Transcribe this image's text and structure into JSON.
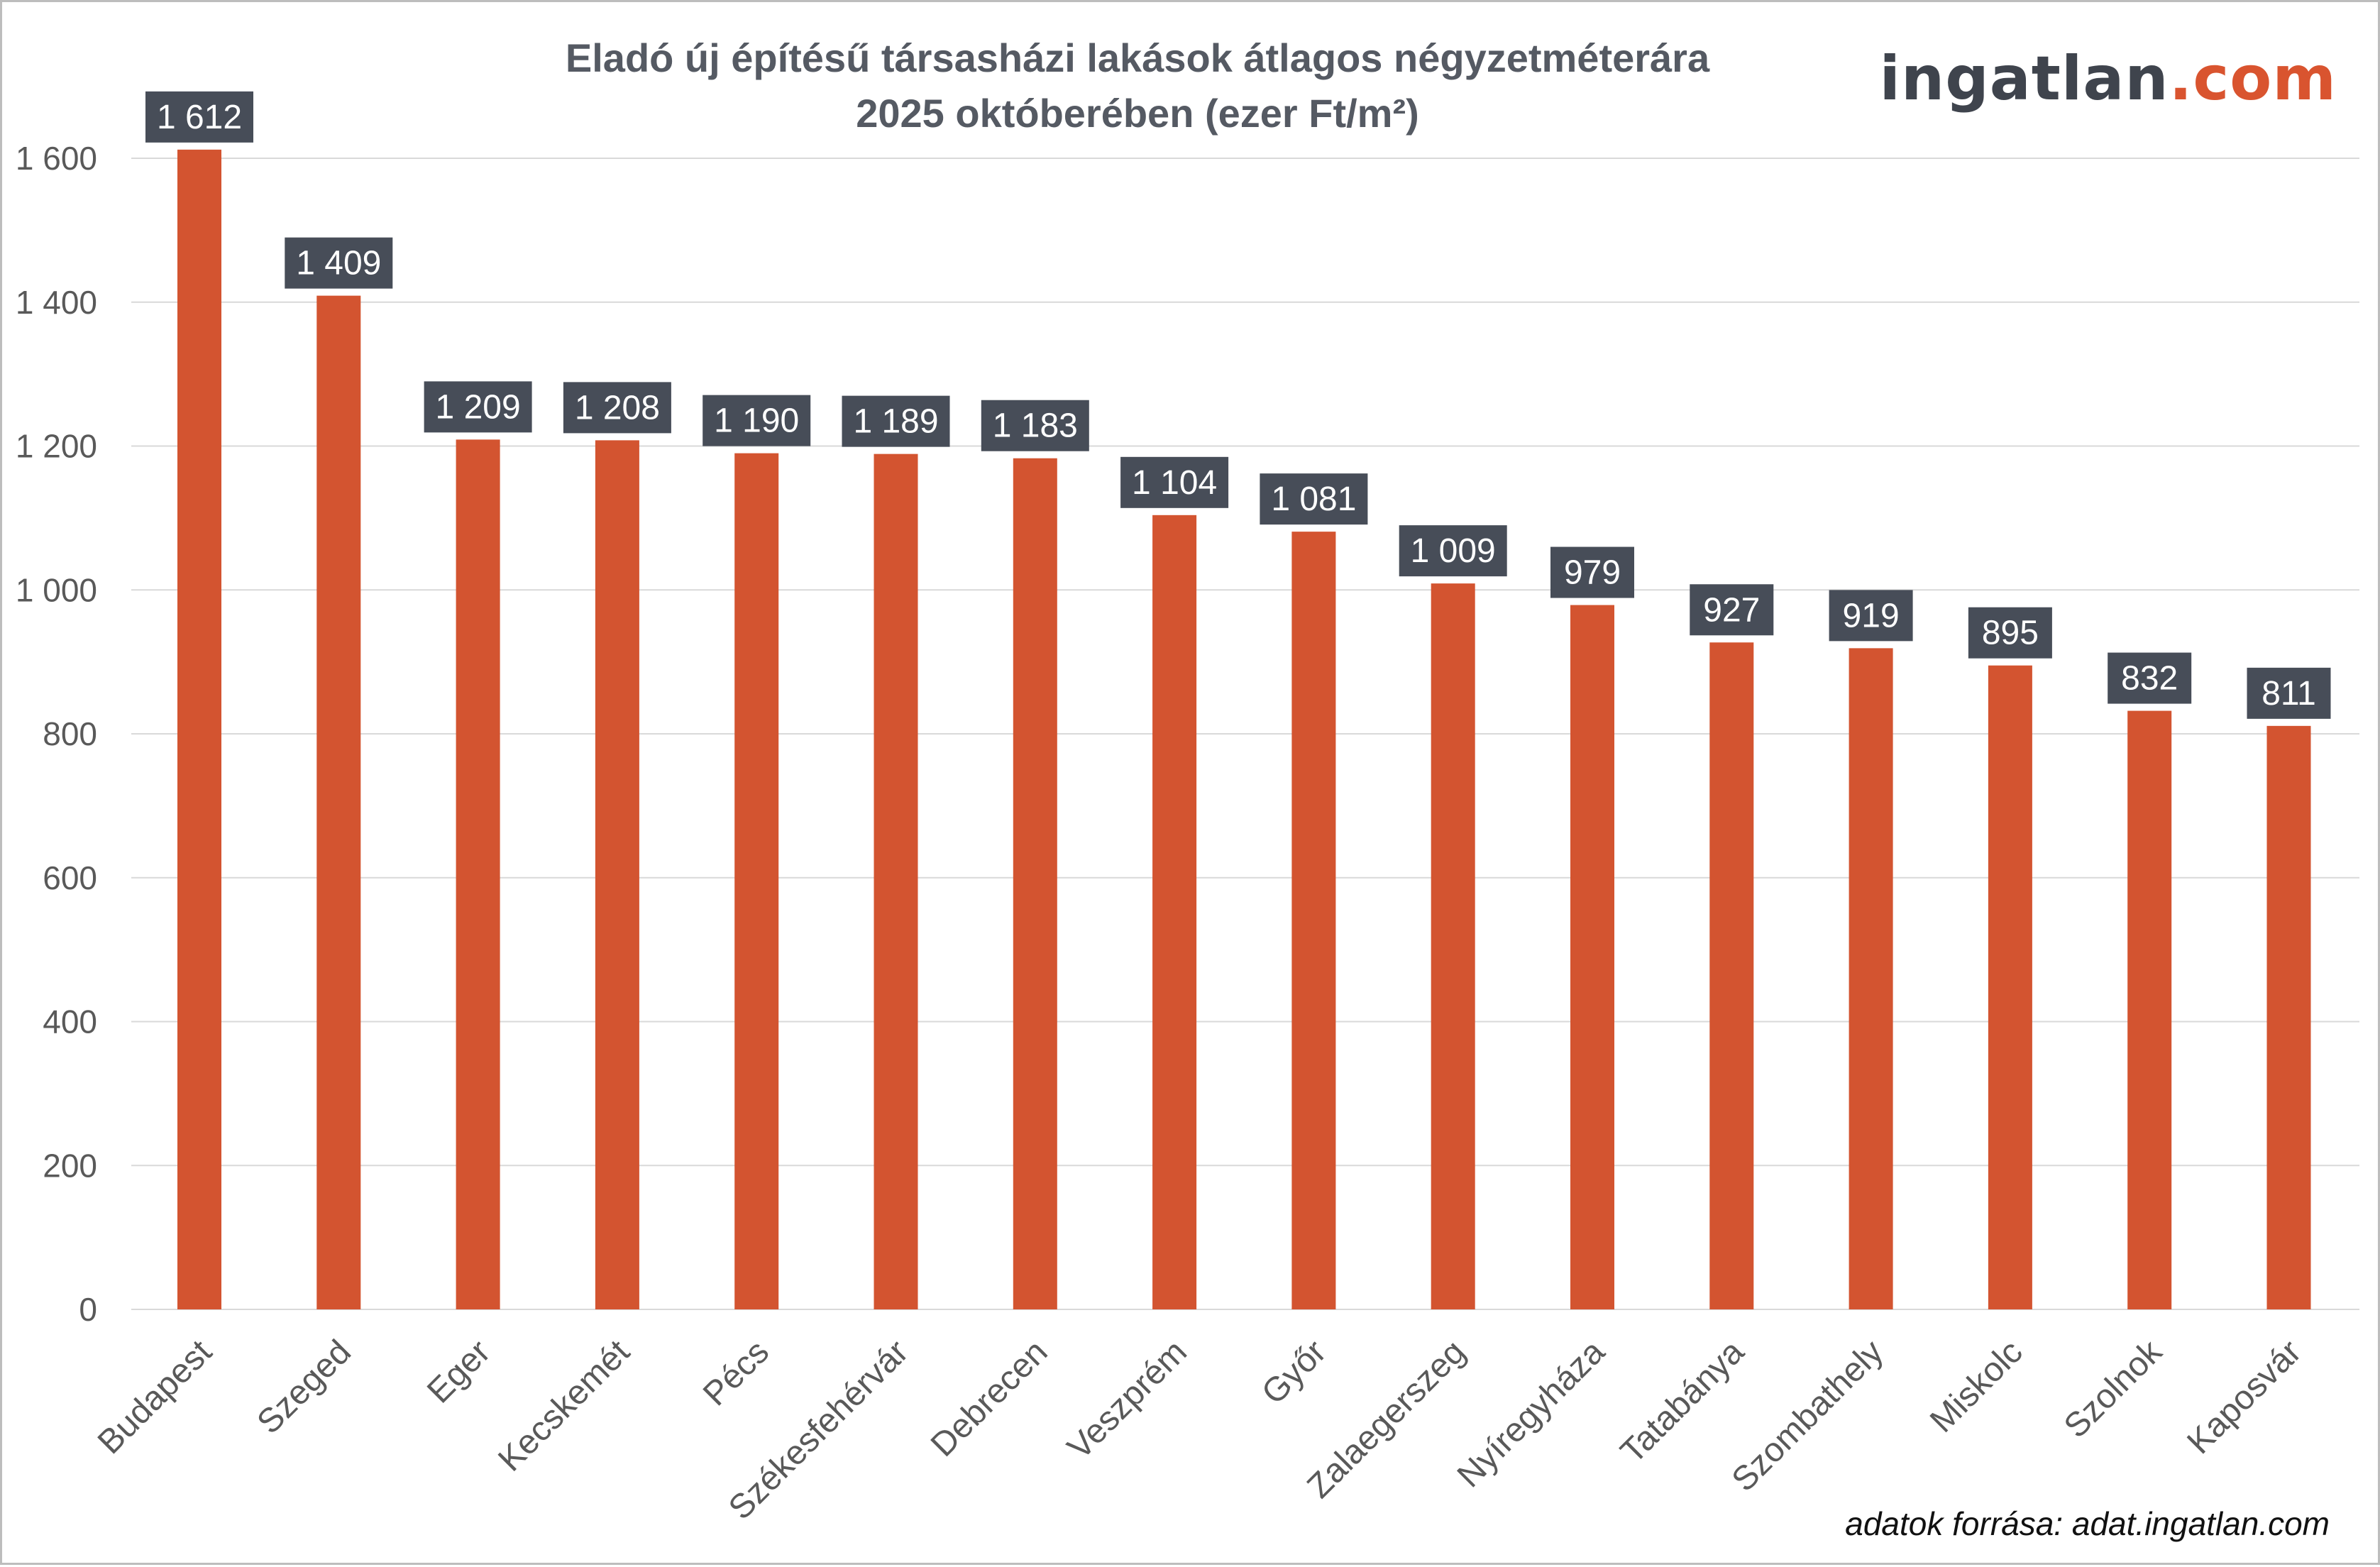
{
  "brand": {
    "name": "ingatlan",
    "tld": ".com"
  },
  "source_note": "adatok forrása: adat.ingatlan.com",
  "colors": {
    "bar": "#d35430",
    "label_bg": "#474d58",
    "label_text": "#ffffff",
    "axis_text": "#595959",
    "grid": "#d9d9d9"
  },
  "chart_data": {
    "type": "bar",
    "title": "Eladó új építésű társasházi lakások átlagos négyzetméterára",
    "subtitle": "2025 októberében (ezer Ft/m²)",
    "xlabel": "",
    "ylabel": "",
    "ylim": [
      0,
      1600
    ],
    "grid": true,
    "yticks": [
      {
        "value": 0,
        "label": "0"
      },
      {
        "value": 200,
        "label": "200"
      },
      {
        "value": 400,
        "label": "400"
      },
      {
        "value": 600,
        "label": "600"
      },
      {
        "value": 800,
        "label": "800"
      },
      {
        "value": 1000,
        "label": "1 000"
      },
      {
        "value": 1200,
        "label": "1 200"
      },
      {
        "value": 1400,
        "label": "1 400"
      },
      {
        "value": 1600,
        "label": "1 600"
      }
    ],
    "categories": [
      "Budapest",
      "Szeged",
      "Eger",
      "Kecskemét",
      "Pécs",
      "Székesfehérvár",
      "Debrecen",
      "Veszprém",
      "Győr",
      "Zalaegerszeg",
      "Nyíregyháza",
      "Tatabánya",
      "Szombathely",
      "Miskolc",
      "Szolnok",
      "Kaposvár"
    ],
    "values": [
      1612,
      1409,
      1209,
      1208,
      1190,
      1189,
      1183,
      1104,
      1081,
      1009,
      979,
      927,
      919,
      895,
      832,
      811
    ],
    "value_labels": [
      "1 612",
      "1 409",
      "1 209",
      "1 208",
      "1 190",
      "1 189",
      "1 183",
      "1 104",
      "1 081",
      "1 009",
      "979",
      "927",
      "919",
      "895",
      "832",
      "811"
    ]
  }
}
